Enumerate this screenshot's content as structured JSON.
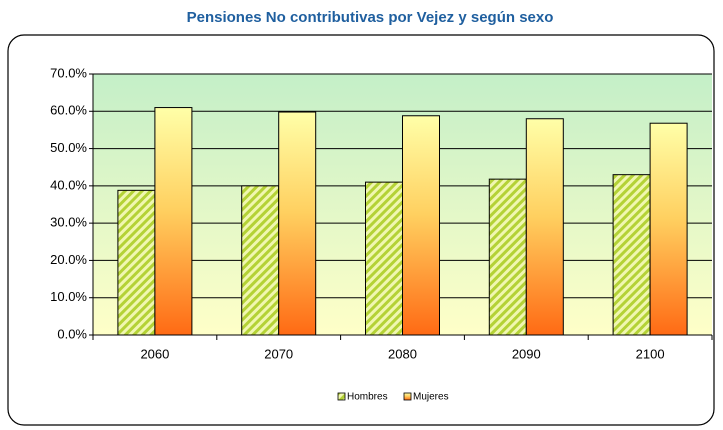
{
  "chart_data": {
    "type": "bar",
    "title": "Pensiones No contributivas por Vejez y según sexo",
    "categories": [
      "2060",
      "2070",
      "2080",
      "2090",
      "2100"
    ],
    "series": [
      {
        "name": "Hombres",
        "color": "#b4d236",
        "values": [
          38.8,
          40.0,
          41.0,
          41.8,
          43.0
        ]
      },
      {
        "name": "Mujeres",
        "color": "#ff6a14",
        "values": [
          61.0,
          59.8,
          58.8,
          58.0,
          56.8
        ]
      }
    ],
    "ylim": [
      0,
      70
    ],
    "yticks": [
      {
        "value": 0,
        "label": "0.0%"
      },
      {
        "value": 10,
        "label": "10.0%"
      },
      {
        "value": 20,
        "label": "20.0%"
      },
      {
        "value": 30,
        "label": "30.0%"
      },
      {
        "value": 40,
        "label": "40.0%"
      },
      {
        "value": 50,
        "label": "50.0%"
      },
      {
        "value": 60,
        "label": "60.0%"
      },
      {
        "value": 70,
        "label": "70.0%"
      }
    ],
    "grid": true,
    "legend": "bottom"
  }
}
